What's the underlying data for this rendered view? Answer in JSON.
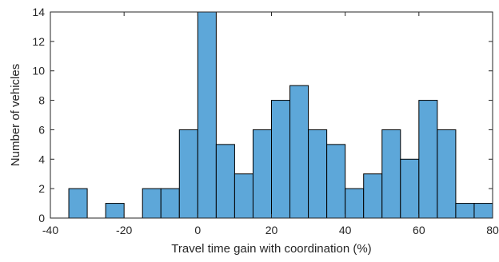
{
  "chart_data": {
    "type": "bar",
    "subtype": "histogram",
    "xlabel": "Travel time gain with coordination (%)",
    "ylabel": "Number of vehicles",
    "xlim": [
      -40,
      80
    ],
    "ylim": [
      0,
      14
    ],
    "xticks": [
      -40,
      -20,
      0,
      20,
      40,
      60,
      80
    ],
    "yticks": [
      0,
      2,
      4,
      6,
      8,
      10,
      12,
      14
    ],
    "bin_width": 5,
    "bins": [
      {
        "x0": -35,
        "x1": -30,
        "count": 2
      },
      {
        "x0": -30,
        "x1": -25,
        "count": 0
      },
      {
        "x0": -25,
        "x1": -20,
        "count": 1
      },
      {
        "x0": -20,
        "x1": -15,
        "count": 0
      },
      {
        "x0": -15,
        "x1": -10,
        "count": 2
      },
      {
        "x0": -10,
        "x1": -5,
        "count": 2
      },
      {
        "x0": -5,
        "x1": 0,
        "count": 6
      },
      {
        "x0": 0,
        "x1": 5,
        "count": 14
      },
      {
        "x0": 5,
        "x1": 10,
        "count": 5
      },
      {
        "x0": 10,
        "x1": 15,
        "count": 3
      },
      {
        "x0": 15,
        "x1": 20,
        "count": 6
      },
      {
        "x0": 20,
        "x1": 25,
        "count": 8
      },
      {
        "x0": 25,
        "x1": 30,
        "count": 9
      },
      {
        "x0": 30,
        "x1": 35,
        "count": 6
      },
      {
        "x0": 35,
        "x1": 40,
        "count": 5
      },
      {
        "x0": 40,
        "x1": 45,
        "count": 2
      },
      {
        "x0": 45,
        "x1": 50,
        "count": 3
      },
      {
        "x0": 50,
        "x1": 55,
        "count": 6
      },
      {
        "x0": 55,
        "x1": 60,
        "count": 4
      },
      {
        "x0": 60,
        "x1": 65,
        "count": 8
      },
      {
        "x0": 65,
        "x1": 70,
        "count": 6
      },
      {
        "x0": 70,
        "x1": 75,
        "count": 1
      },
      {
        "x0": 75,
        "x1": 80,
        "count": 1
      }
    ],
    "bar_color": "#5DA7D9",
    "edge_color": "#000000",
    "grid": false,
    "box": true
  }
}
